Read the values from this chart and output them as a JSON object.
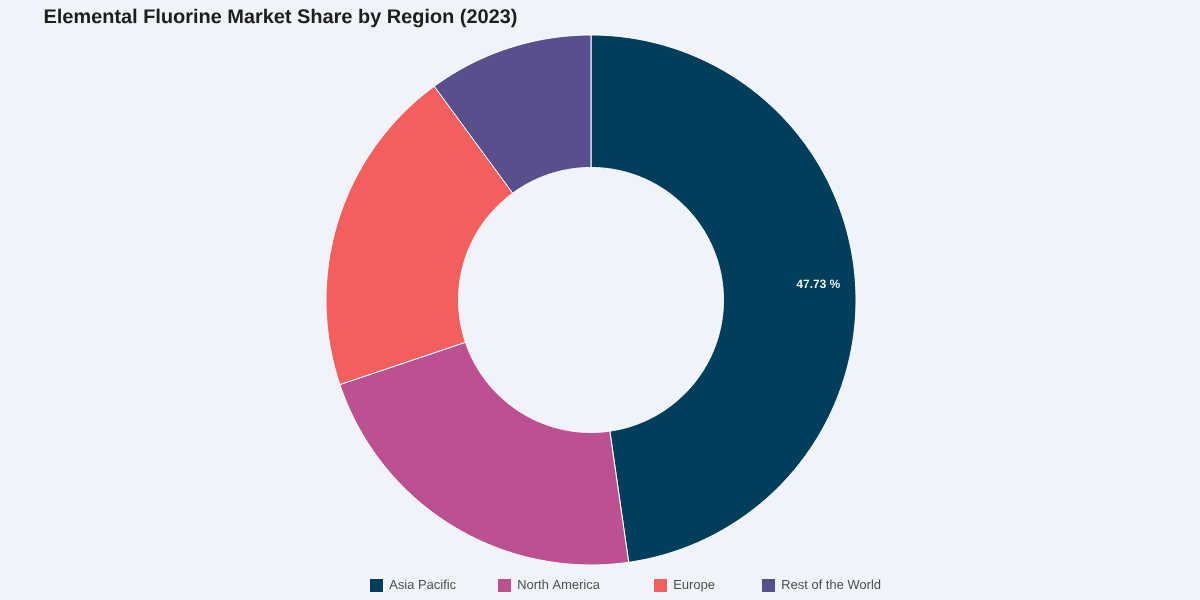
{
  "chart_data": {
    "type": "donut",
    "title": "Elemental Fluorine Market Share by Region (2023)",
    "categories": [
      "Asia Pacific",
      "North America",
      "Europe",
      "Rest of the World"
    ],
    "values": [
      47.73,
      22.1,
      20.1,
      10.07
    ],
    "colors": [
      "#003f5c",
      "#bc5090",
      "#f25f5c",
      "#58508d"
    ],
    "value_labels": [
      "47.73 %",
      null,
      null,
      null
    ],
    "legend": "bottom"
  }
}
